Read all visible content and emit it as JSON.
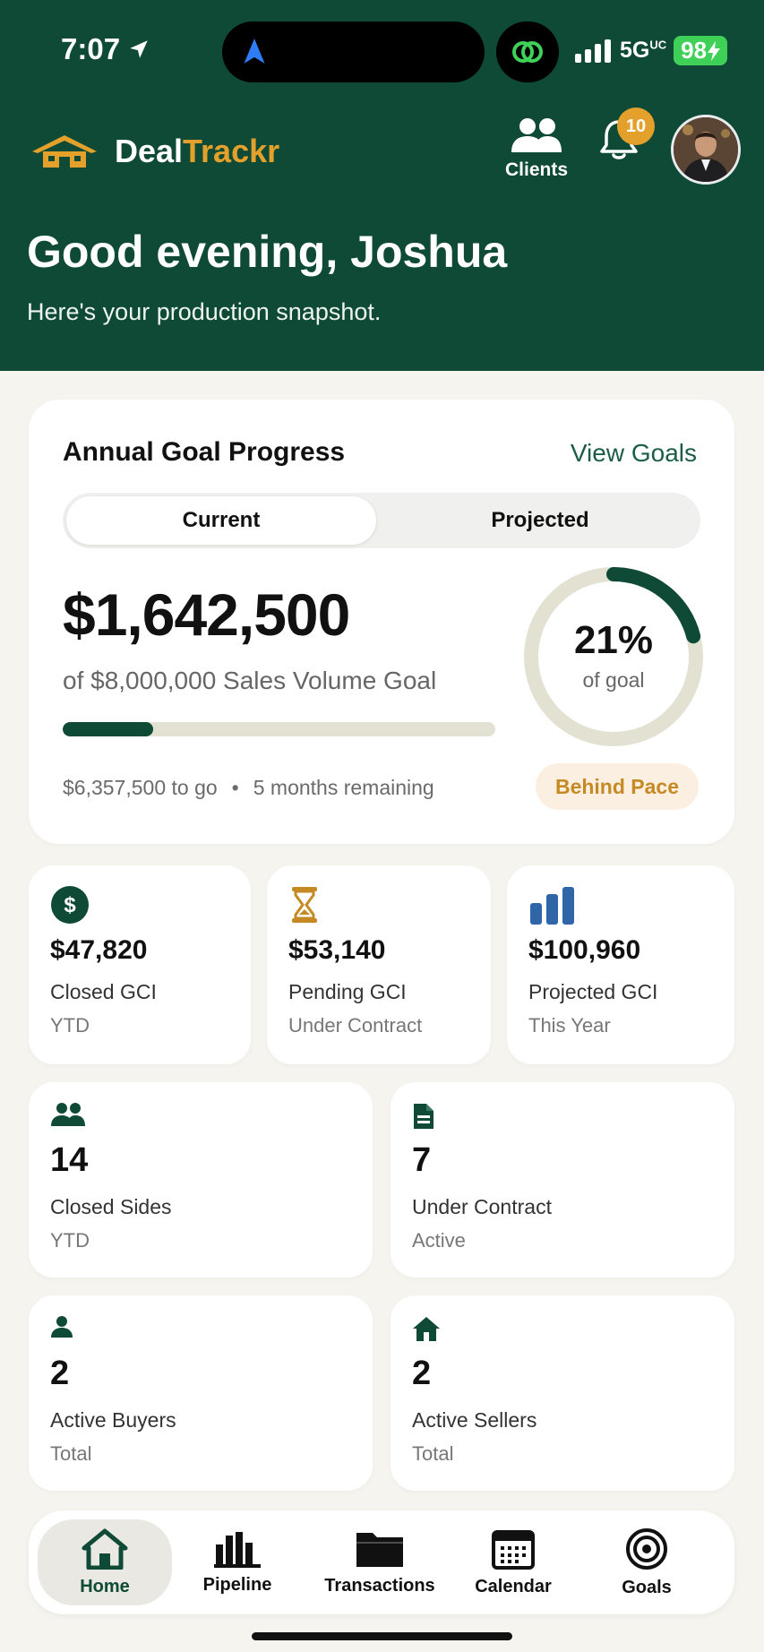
{
  "status_bar": {
    "time": "7:07",
    "network": "5G",
    "network_sup": "UC",
    "battery": "98"
  },
  "brand": {
    "part1": "Deal",
    "part2": "Trackr"
  },
  "header": {
    "clients_label": "Clients",
    "notification_count": "10"
  },
  "greeting": {
    "title": "Good evening, Joshua",
    "subtitle": "Here's your production snapshot."
  },
  "goal": {
    "title": "Annual Goal Progress",
    "view_link": "View Goals",
    "tabs": [
      "Current",
      "Projected"
    ],
    "selected_tab": "Current",
    "amount": "$1,642,500",
    "subtitle": "of $8,000,000 Sales Volume Goal",
    "progress": 0.21,
    "to_go": "$6,357,500 to go",
    "separator": "•",
    "remaining": "5 months remaining",
    "percent": "21%",
    "percent_label": "of goal",
    "pace": "Behind Pace"
  },
  "stats_top": [
    {
      "icon": "dollar-circle-icon",
      "value": "$47,820",
      "label": "Closed GCI",
      "sub": "YTD"
    },
    {
      "icon": "hourglass-icon",
      "value": "$53,140",
      "label": "Pending GCI",
      "sub": "Under Contract"
    },
    {
      "icon": "bar-chart-icon",
      "value": "$100,960",
      "label": "Projected GCI",
      "sub": "This Year"
    }
  ],
  "stats_grid": [
    {
      "icon": "people-icon",
      "value": "14",
      "label": "Closed Sides",
      "sub": "YTD"
    },
    {
      "icon": "document-icon",
      "value": "7",
      "label": "Under Contract",
      "sub": "Active"
    },
    {
      "icon": "person-icon",
      "value": "2",
      "label": "Active Buyers",
      "sub": "Total"
    },
    {
      "icon": "house-icon",
      "value": "2",
      "label": "Active Sellers",
      "sub": "Total"
    }
  ],
  "tabs": [
    {
      "label": "Home",
      "active": true
    },
    {
      "label": "Pipeline"
    },
    {
      "label": "Transactions"
    },
    {
      "label": "Calendar"
    },
    {
      "label": "Goals"
    }
  ],
  "colors": {
    "primary": "#0e4a35",
    "accent": "#e3a12b",
    "background": "#f6f4ef",
    "warning_bg": "#faefe1"
  }
}
